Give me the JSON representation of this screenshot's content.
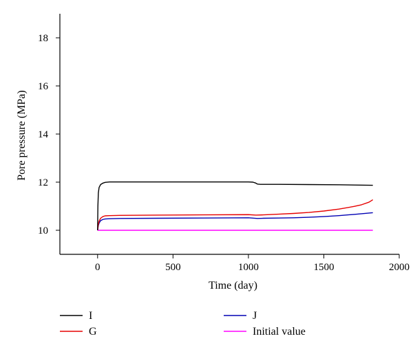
{
  "chart_data": {
    "type": "line",
    "title": "",
    "xlabel": "Time (day)",
    "ylabel": "Pore pressure (MPa)",
    "xlim": [
      -250,
      2000
    ],
    "ylim": [
      9,
      19
    ],
    "xticks": [
      0,
      500,
      1000,
      1500,
      2000
    ],
    "yticks": [
      10,
      12,
      14,
      16,
      18
    ],
    "grid": false,
    "legend_position": "bottom",
    "series": [
      {
        "name": "I",
        "color": "#000000",
        "x": [
          0,
          2,
          5,
          10,
          20,
          35,
          50,
          80,
          120,
          300,
          600,
          900,
          1000,
          1030,
          1045,
          1060,
          1080,
          1200,
          1400,
          1600,
          1825
        ],
        "y": [
          10.0,
          11.0,
          11.55,
          11.78,
          11.9,
          11.96,
          11.99,
          12.01,
          12.01,
          12.01,
          12.01,
          12.01,
          12.01,
          12.0,
          11.97,
          11.92,
          11.91,
          11.91,
          11.9,
          11.89,
          11.87
        ]
      },
      {
        "name": "G",
        "color": "#e60000",
        "x": [
          0,
          5,
          10,
          20,
          35,
          50,
          80,
          150,
          400,
          700,
          1000,
          1050,
          1100,
          1200,
          1300,
          1400,
          1500,
          1600,
          1700,
          1750,
          1800,
          1825
        ],
        "y": [
          10.0,
          10.25,
          10.38,
          10.5,
          10.57,
          10.6,
          10.61,
          10.62,
          10.63,
          10.64,
          10.65,
          10.63,
          10.64,
          10.67,
          10.7,
          10.74,
          10.8,
          10.88,
          10.99,
          11.06,
          11.17,
          11.27
        ]
      },
      {
        "name": "J",
        "color": "#0000b3",
        "x": [
          0,
          5,
          10,
          20,
          35,
          50,
          80,
          150,
          400,
          700,
          1000,
          1060,
          1100,
          1200,
          1300,
          1400,
          1500,
          1600,
          1700,
          1825
        ],
        "y": [
          10.0,
          10.2,
          10.3,
          10.4,
          10.45,
          10.47,
          10.48,
          10.49,
          10.5,
          10.51,
          10.52,
          10.49,
          10.5,
          10.51,
          10.52,
          10.54,
          10.57,
          10.61,
          10.66,
          10.73
        ]
      },
      {
        "name": "Initial value",
        "color": "#ff00ff",
        "x": [
          0,
          1825
        ],
        "y": [
          10.0,
          10.0
        ]
      }
    ]
  }
}
